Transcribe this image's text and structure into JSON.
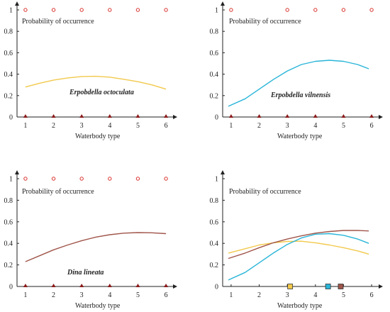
{
  "chart_data": [
    {
      "type": "line",
      "ylabel": "Probability of occurrence",
      "xlabel": "Waterbody type",
      "annotation": "Erpobdella octoculata",
      "xlim": [
        0.8,
        6.2
      ],
      "ylim": [
        0,
        1
      ],
      "x_ticks": [
        "1",
        "2",
        "3",
        "4",
        "5",
        "6"
      ],
      "y_ticks": [
        "0",
        "0.2",
        "0.4",
        "0.6",
        "0.8",
        "1"
      ],
      "presence_x": [
        1,
        2,
        3,
        4,
        5,
        6
      ],
      "absence_x": [
        1,
        2,
        3,
        4,
        5,
        6
      ],
      "series": [
        {
          "color": "#f2c94c",
          "x": [
            1,
            1.5,
            2,
            2.5,
            3,
            3.5,
            4,
            4.5,
            5,
            5.5,
            6
          ],
          "y": [
            0.28,
            0.315,
            0.345,
            0.365,
            0.378,
            0.38,
            0.372,
            0.352,
            0.33,
            0.3,
            0.26
          ]
        }
      ]
    },
    {
      "type": "line",
      "ylabel": "Probability of occurrence",
      "xlabel": "Waterbody type",
      "annotation": "Erpobdella vilnensis",
      "xlim": [
        0.8,
        6.2
      ],
      "ylim": [
        0,
        1
      ],
      "x_ticks": [
        "1",
        "2",
        "3",
        "4",
        "5",
        "6"
      ],
      "y_ticks": [
        "0",
        "0.2",
        "0.4",
        "0.6",
        "0.8",
        "1"
      ],
      "presence_x": [
        1,
        3,
        4,
        5,
        6
      ],
      "absence_x": [
        1,
        2,
        3,
        4,
        5,
        6
      ],
      "series": [
        {
          "color": "#29b5d8",
          "x": [
            0.9,
            1.5,
            2,
            2.5,
            3,
            3.5,
            4,
            4.5,
            5,
            5.5,
            5.9
          ],
          "y": [
            0.1,
            0.17,
            0.26,
            0.35,
            0.43,
            0.49,
            0.52,
            0.53,
            0.52,
            0.49,
            0.45
          ]
        }
      ]
    },
    {
      "type": "line",
      "ylabel": "Probability of occurrence",
      "xlabel": "Waterbody type",
      "annotation": "Dina lineata",
      "xlim": [
        0.8,
        6.2
      ],
      "ylim": [
        0,
        1
      ],
      "x_ticks": [
        "1",
        "2",
        "3",
        "4",
        "5",
        "6"
      ],
      "y_ticks": [
        "0",
        "0.2",
        "0.4",
        "0.6",
        "0.8",
        "1"
      ],
      "presence_x": [
        1,
        2,
        3,
        4,
        5,
        6
      ],
      "absence_x": [
        1,
        2,
        3,
        4,
        5,
        6
      ],
      "series": [
        {
          "color": "#a0554a",
          "x": [
            1,
            1.5,
            2,
            2.5,
            3,
            3.5,
            4,
            4.5,
            5,
            5.5,
            6
          ],
          "y": [
            0.23,
            0.285,
            0.34,
            0.385,
            0.425,
            0.458,
            0.48,
            0.495,
            0.5,
            0.498,
            0.49
          ]
        }
      ]
    },
    {
      "type": "line",
      "ylabel": "Probability of occurrence",
      "xlabel": "Waterbody type",
      "xlim": [
        0.8,
        6.2
      ],
      "ylim": [
        0,
        1
      ],
      "x_ticks": [
        "1",
        "2",
        "3",
        "4",
        "5",
        "6"
      ],
      "y_ticks": [
        "0",
        "0.2",
        "0.4",
        "0.6",
        "0.8",
        "1"
      ],
      "series": [
        {
          "color": "#f2c94c",
          "x": [
            0.9,
            1.5,
            2,
            2.5,
            3,
            3.5,
            4,
            4.5,
            5,
            5.5,
            5.9
          ],
          "y": [
            0.31,
            0.35,
            0.385,
            0.405,
            0.418,
            0.42,
            0.405,
            0.385,
            0.36,
            0.33,
            0.3
          ]
        },
        {
          "color": "#29b5d8",
          "x": [
            0.9,
            1.5,
            2,
            2.5,
            3,
            3.5,
            4,
            4.5,
            5,
            5.5,
            5.9
          ],
          "y": [
            0.06,
            0.13,
            0.22,
            0.31,
            0.39,
            0.45,
            0.485,
            0.49,
            0.475,
            0.44,
            0.4
          ]
        },
        {
          "color": "#a0554a",
          "x": [
            0.9,
            1.5,
            2,
            2.5,
            3,
            3.5,
            4,
            4.5,
            5,
            5.5,
            5.9
          ],
          "y": [
            0.26,
            0.31,
            0.36,
            0.405,
            0.44,
            0.47,
            0.495,
            0.51,
            0.52,
            0.52,
            0.515
          ]
        }
      ],
      "optimum_markers": [
        {
          "x": 3.1,
          "color": "#f2c94c"
        },
        {
          "x": 4.45,
          "color": "#29b5d8"
        },
        {
          "x": 4.9,
          "color": "#a0554a"
        }
      ]
    }
  ]
}
